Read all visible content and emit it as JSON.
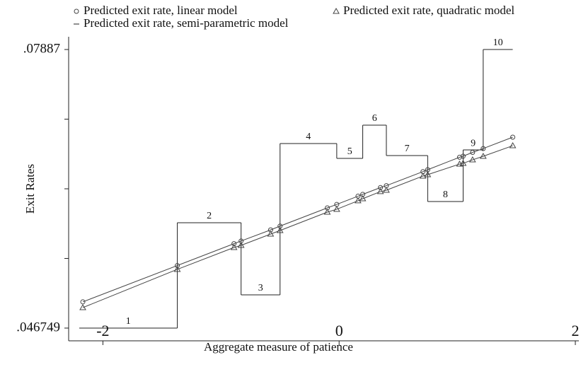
{
  "chart_data": {
    "type": "line",
    "x_label": "Aggregate measure of patience",
    "y_label": "Exit Rates",
    "xlim": [
      -2.29,
      2.03
    ],
    "ylim": [
      0.04528,
      0.08034
    ],
    "xticks": [
      -2,
      0,
      2
    ],
    "yticks": [
      {
        "value": 0.046749,
        "label": ".046749"
      },
      {
        "value": 0.07887,
        "label": ".07887"
      }
    ],
    "yminorticks": [
      0.05478,
      0.06281,
      0.07084
    ],
    "series": [
      {
        "name": "Predicted exit rate, linear model",
        "marker": "circle",
        "color": "#444444",
        "x": [
          -2.17,
          -1.37,
          -0.89,
          -0.83,
          -0.58,
          -0.5,
          -0.1,
          -0.02,
          0.16,
          0.2,
          0.35,
          0.4,
          0.71,
          0.75,
          1.02,
          1.05,
          1.13,
          1.22,
          1.47
        ],
        "values": [
          0.04977,
          0.05396,
          0.05648,
          0.05679,
          0.05807,
          0.05851,
          0.06061,
          0.06101,
          0.06196,
          0.06217,
          0.06295,
          0.06317,
          0.06479,
          0.06501,
          0.06645,
          0.06657,
          0.06701,
          0.06745,
          0.06876
        ]
      },
      {
        "name": "Predicted exit rate, quadratic model",
        "marker": "triangle",
        "color": "#444444",
        "x": [
          -2.17,
          -1.37,
          -0.89,
          -0.83,
          -0.58,
          -0.5,
          -0.1,
          -0.02,
          0.16,
          0.2,
          0.35,
          0.4,
          0.71,
          0.75,
          1.02,
          1.05,
          1.13,
          1.22,
          1.47
        ],
        "values": [
          0.04911,
          0.05352,
          0.05604,
          0.05629,
          0.05759,
          0.058,
          0.06012,
          0.06045,
          0.06143,
          0.06167,
          0.06249,
          0.06265,
          0.06428,
          0.06444,
          0.06566,
          0.06575,
          0.06615,
          0.06656,
          0.06778
        ]
      }
    ],
    "step": {
      "name": "Predicted exit rate, semi-parametric model",
      "color": "#222222",
      "edges": [
        -2.2,
        -1.37,
        -0.83,
        -0.5,
        -0.02,
        0.2,
        0.4,
        0.75,
        1.05,
        1.22,
        1.47
      ],
      "values": [
        0.046749,
        0.0589,
        0.05058,
        0.06803,
        0.06632,
        0.07015,
        0.06664,
        0.06134,
        0.06729,
        0.07887
      ],
      "labels": [
        "1",
        "2",
        "3",
        "4",
        "5",
        "6",
        "7",
        "8",
        "9",
        "10"
      ]
    }
  }
}
